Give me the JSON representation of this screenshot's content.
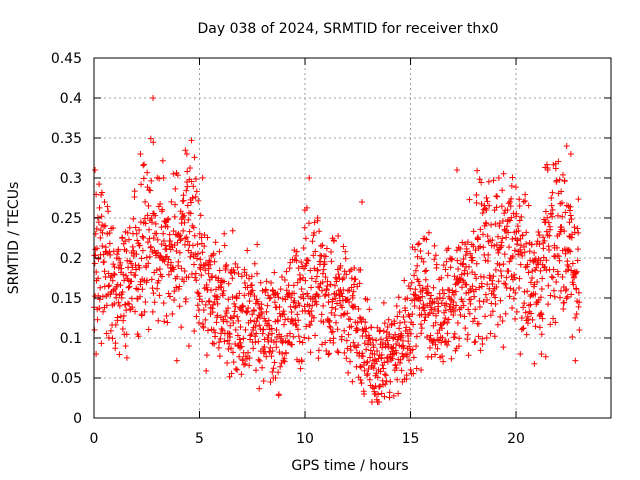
{
  "chart_data": {
    "type": "scatter",
    "title": "Day 038 of 2024, SRMTID for receiver thx0",
    "xlabel": "GPS time / hours",
    "ylabel": "SRMTID / TECUs",
    "xlim": [
      0,
      24.5
    ],
    "ylim": [
      0,
      0.45
    ],
    "x_ticks": [
      0,
      5,
      10,
      15,
      20
    ],
    "x_tick_labels": [
      "0",
      "5",
      "10",
      "15",
      "20"
    ],
    "y_ticks": [
      0,
      0.05,
      0.1,
      0.15,
      0.2,
      0.25,
      0.3,
      0.35,
      0.4,
      0.45
    ],
    "y_tick_labels": [
      "0",
      "0.05",
      "0.1",
      "0.15",
      "0.2",
      "0.25",
      "0.3",
      "0.35",
      "0.4",
      "0.45"
    ],
    "grid": true,
    "legend": "none",
    "marker": "plus",
    "color": "#ff0000",
    "trend": [
      [
        0.0,
        0.17
      ],
      [
        0.5,
        0.2
      ],
      [
        1.0,
        0.16
      ],
      [
        1.5,
        0.17
      ],
      [
        2.0,
        0.2
      ],
      [
        2.5,
        0.24
      ],
      [
        3.0,
        0.22
      ],
      [
        3.5,
        0.19
      ],
      [
        4.0,
        0.21
      ],
      [
        4.5,
        0.24
      ],
      [
        5.0,
        0.19
      ],
      [
        5.5,
        0.15
      ],
      [
        6.0,
        0.15
      ],
      [
        6.5,
        0.14
      ],
      [
        7.0,
        0.13
      ],
      [
        7.5,
        0.13
      ],
      [
        8.0,
        0.11
      ],
      [
        8.5,
        0.11
      ],
      [
        9.0,
        0.12
      ],
      [
        9.5,
        0.14
      ],
      [
        10.0,
        0.16
      ],
      [
        10.5,
        0.18
      ],
      [
        11.0,
        0.15
      ],
      [
        11.5,
        0.16
      ],
      [
        12.0,
        0.15
      ],
      [
        12.5,
        0.11
      ],
      [
        13.0,
        0.08
      ],
      [
        13.5,
        0.07
      ],
      [
        14.0,
        0.08
      ],
      [
        14.5,
        0.09
      ],
      [
        15.0,
        0.12
      ],
      [
        15.5,
        0.18
      ],
      [
        16.0,
        0.14
      ],
      [
        16.5,
        0.13
      ],
      [
        17.0,
        0.15
      ],
      [
        17.5,
        0.17
      ],
      [
        18.0,
        0.18
      ],
      [
        18.5,
        0.2
      ],
      [
        19.0,
        0.19
      ],
      [
        19.5,
        0.2
      ],
      [
        20.0,
        0.21
      ],
      [
        20.5,
        0.17
      ],
      [
        21.0,
        0.16
      ],
      [
        21.5,
        0.22
      ],
      [
        22.0,
        0.23
      ],
      [
        22.5,
        0.21
      ],
      [
        23.0,
        0.18
      ]
    ],
    "peaks": [
      [
        0.05,
        0.31
      ],
      [
        0.5,
        0.27
      ],
      [
        2.2,
        0.33
      ],
      [
        2.8,
        0.4
      ],
      [
        3.3,
        0.3
      ],
      [
        4.4,
        0.33
      ],
      [
        10.2,
        0.3
      ],
      [
        10.6,
        0.25
      ],
      [
        12.7,
        0.27
      ],
      [
        17.2,
        0.31
      ],
      [
        18.6,
        0.26
      ],
      [
        19.8,
        0.29
      ],
      [
        21.5,
        0.31
      ],
      [
        22.4,
        0.34
      ],
      [
        22.6,
        0.33
      ]
    ],
    "troughs": [
      [
        0.1,
        0.08
      ],
      [
        1.5,
        0.09
      ],
      [
        4.5,
        0.09
      ],
      [
        8.6,
        0.05
      ],
      [
        12.8,
        0.03
      ],
      [
        13.3,
        0.03
      ],
      [
        15.5,
        0.06
      ],
      [
        20.2,
        0.08
      ],
      [
        21.2,
        0.08
      ],
      [
        23.0,
        0.11
      ]
    ]
  }
}
